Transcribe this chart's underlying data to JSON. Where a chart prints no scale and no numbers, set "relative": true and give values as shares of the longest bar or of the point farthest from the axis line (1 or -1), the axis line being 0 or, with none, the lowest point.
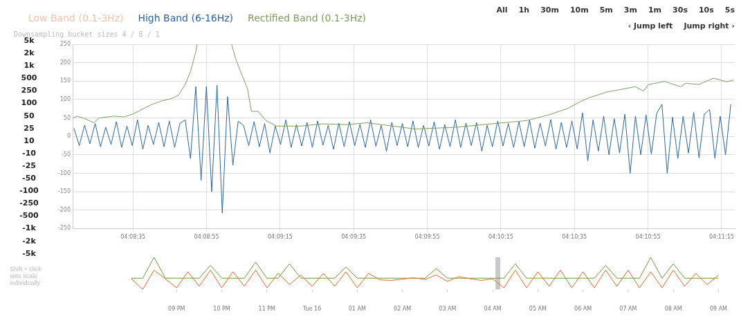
{
  "chart_data": [
    {
      "type": "line",
      "subtitle": "Downsampling bucket sizes 4 / 8 / 1",
      "legend": "top left",
      "grid": true,
      "marker": "none",
      "xlim": [
        4.1385,
        4.1885
      ],
      "xticks": [
        {
          "value": 4.143056,
          "label": "04:08:35"
        },
        {
          "value": 4.148611,
          "label": "04:08:55"
        },
        {
          "value": 4.154167,
          "label": "04:09:15"
        },
        {
          "value": 4.159722,
          "label": "04:09:35"
        },
        {
          "value": 4.165278,
          "label": "04:09:55"
        },
        {
          "value": 4.170833,
          "label": "04:10:15"
        },
        {
          "value": 4.176389,
          "label": "04:10:35"
        },
        {
          "value": 4.181944,
          "label": "04:10:55"
        },
        {
          "value": 4.1875,
          "label": "04:11:15"
        }
      ],
      "ylim": [
        -250,
        250
      ],
      "yticks": [
        -250,
        -200,
        -150,
        -100,
        -50,
        0,
        50,
        100,
        150,
        200,
        250
      ],
      "series": [
        {
          "name": "Low Band (0.1-3Hz)",
          "color": "#f0c2a8"
        },
        {
          "name": "High Band (6-16Hz)",
          "color": "#2a64a0",
          "x": [
            4.1386,
            4.139,
            4.1394,
            4.1398,
            4.1402,
            4.1406,
            4.141,
            4.1414,
            4.1418,
            4.1422,
            4.1426,
            4.143,
            4.1434,
            4.1438,
            4.1442,
            4.1446,
            4.145,
            4.1454,
            4.1458,
            4.1462,
            4.1466,
            4.147,
            4.1474,
            4.1478,
            4.1482,
            4.1486,
            4.149,
            4.1494,
            4.1498,
            4.1502,
            4.1506,
            4.151,
            4.1514,
            4.1518,
            4.1522,
            4.1526,
            4.153,
            4.1534,
            4.1538,
            4.1542,
            4.1546,
            4.155,
            4.1554,
            4.1558,
            4.1562,
            4.1566,
            4.157,
            4.1574,
            4.1578,
            4.1582,
            4.1586,
            4.159,
            4.1594,
            4.1598,
            4.1602,
            4.1606,
            4.161,
            4.1614,
            4.1618,
            4.1622,
            4.1626,
            4.163,
            4.1634,
            4.1638,
            4.1642,
            4.1646,
            4.165,
            4.1654,
            4.1658,
            4.1662,
            4.1666,
            4.167,
            4.1674,
            4.1678,
            4.1682,
            4.1686,
            4.169,
            4.1694,
            4.1698,
            4.1702,
            4.1706,
            4.171,
            4.1714,
            4.1718,
            4.1722,
            4.1726,
            4.173,
            4.1734,
            4.1738,
            4.1742,
            4.1746,
            4.175,
            4.1754,
            4.1758,
            4.1762,
            4.1766,
            4.177,
            4.1774,
            4.1778,
            4.1782,
            4.1786,
            4.179,
            4.1794,
            4.1798,
            4.1802,
            4.1806,
            4.181,
            4.1814,
            4.1818,
            4.1822,
            4.1826,
            4.183,
            4.1834,
            4.1838,
            4.1842,
            4.1846,
            4.185,
            4.1854,
            4.1858,
            4.1862,
            4.1866,
            4.187,
            4.1874,
            4.1878,
            4.1882
          ],
          "values": [
            22,
            -25,
            30,
            -20,
            35,
            -28,
            25,
            -22,
            40,
            -30,
            28,
            -25,
            45,
            -35,
            30,
            -22,
            38,
            -28,
            42,
            -30,
            35,
            45,
            -60,
            135,
            -119,
            135,
            -150,
            139,
            -208,
            108,
            -78,
            41,
            30,
            -25,
            40,
            -28,
            35,
            -45,
            28,
            -22,
            45,
            -30,
            32,
            -26,
            38,
            -30,
            42,
            -24,
            30,
            -35,
            36,
            -28,
            40,
            -25,
            33,
            -30,
            45,
            -27,
            30,
            -40,
            38,
            -25,
            35,
            -28,
            42,
            -30,
            30,
            -26,
            40,
            -35,
            32,
            -28,
            45,
            -30,
            36,
            -25,
            38,
            -40,
            30,
            -28,
            42,
            -26,
            35,
            -30,
            40,
            -28,
            44,
            -32,
            36,
            -26,
            46,
            -35,
            38,
            -30,
            42,
            -34,
            64,
            -66,
            45,
            -40,
            55,
            -50,
            48,
            -45,
            60,
            -100,
            55,
            -50,
            58,
            -48,
            62,
            87,
            -100,
            52,
            -60,
            55,
            -45,
            65,
            -58,
            60,
            73,
            -60,
            55,
            -50,
            87
          ]
        },
        {
          "name": "Rectified Band (0.1-3Hz)",
          "color": "#7a9e5e",
          "x": [
            4.1385,
            4.1388,
            4.1393,
            4.1401,
            4.1405,
            4.1416,
            4.1424,
            4.143,
            4.1439,
            4.1445,
            4.1452,
            4.146,
            4.1465,
            4.147,
            4.1474,
            4.1478,
            4.1479,
            4.1492,
            4.1505,
            4.1508,
            4.1512,
            4.1517,
            4.152,
            4.1525,
            4.1531,
            4.1539,
            4.1557,
            4.1574,
            4.1592,
            4.1607,
            4.1627,
            4.1644,
            4.1675,
            4.1701,
            4.1728,
            4.1745,
            4.1759,
            4.1768,
            4.1775,
            4.1789,
            4.1797,
            4.181,
            4.1816,
            4.182,
            4.1832,
            4.1839,
            4.1844,
            4.1848,
            4.1858,
            4.1869,
            4.1874,
            4.1879,
            4.1884
          ],
          "values": [
            49,
            55,
            50,
            37,
            50,
            55,
            53,
            60,
            76,
            87,
            96,
            103,
            112,
            141,
            176,
            230,
            250,
            null,
            250,
            212,
            174,
            130,
            68,
            68,
            43,
            28,
            28,
            34,
            32,
            37,
            28,
            20,
            25,
            34,
            43,
            59,
            76,
            94,
            105,
            121,
            126,
            135,
            123,
            141,
            149,
            141,
            135,
            144,
            141,
            158,
            153,
            148,
            153
          ]
        }
      ]
    },
    {
      "type": "line",
      "relative": true,
      "marker": "none",
      "categories": [
        null,
        null,
        null,
        null,
        "09 PM",
        null,
        null,
        null,
        "10 PM",
        null,
        null,
        null,
        "11 PM",
        null,
        null,
        null,
        "Tue 16",
        null,
        null,
        null,
        "01 AM",
        null,
        null,
        null,
        "02 AM",
        null,
        null,
        null,
        "03 AM",
        null,
        null,
        null,
        "04 AM",
        null,
        null,
        null,
        "05 AM",
        null,
        null,
        null,
        "06 AM",
        null,
        null,
        null,
        "07 AM",
        null,
        null,
        null,
        "08 AM",
        null,
        null,
        null,
        "09 AM"
      ],
      "bands": [
        {
          "axis": "x",
          "from": "04 AM",
          "to": "04 AM",
          "color": "#c8c8c8"
        }
      ],
      "annotations": [
        "Shift + click sets scale individually"
      ],
      "series": [
        {
          "color": "#6a9a3a",
          "values": [
            0.35,
            0.35,
            1,
            0.35,
            0.35,
            0.35,
            0.35,
            0.75,
            0.35,
            0.35,
            0.35,
            0.85,
            0.35,
            0.35,
            0.8,
            0.35,
            0.35,
            0.35,
            0.35,
            0.7,
            0.35,
            0.35,
            0.35,
            0.35,
            0.35,
            0.35,
            0.35,
            0.65,
            0.35,
            0.35,
            0.35,
            0.35,
            0.35,
            0.35,
            0.8,
            0.35,
            0.35,
            0.35,
            0.35,
            0.35,
            0.35,
            0.35,
            0.75,
            0.35,
            0.35,
            0.35,
            1,
            0.35,
            0.8,
            0.35,
            0.35,
            0.35,
            0.35
          ]
        },
        {
          "color": "#f26522",
          "values": [
            0.33,
            0,
            0.6,
            0.33,
            0.05,
            0.55,
            0.1,
            0.6,
            0.05,
            0.55,
            0.1,
            0.6,
            0.05,
            0.5,
            0.15,
            0.45,
            0.1,
            0.5,
            0.1,
            0.55,
            0.05,
            0.5,
            0.3,
            0.28,
            0.32,
            0.36,
            0.31,
            0.45,
            0.25,
            0.4,
            0.33,
            0.28,
            0.33,
            0.05,
            0.6,
            0.05,
            0.55,
            0.1,
            0.6,
            0.05,
            0.55,
            0.05,
            0.6,
            0.1,
            0.6,
            0.05,
            0.55,
            0.05,
            0.6,
            0.1,
            0.5,
            0.15,
            0.45
          ]
        }
      ]
    },
    {
      "type": "other",
      "annotations": [
        "All",
        "1h",
        "30m",
        "10m",
        "5m",
        "3m",
        "1m",
        "30s",
        "10s",
        "5s"
      ]
    },
    {
      "type": "other",
      "annotations": [
        "‹ Jump left",
        "Jump right ›"
      ]
    },
    {
      "type": "other",
      "annotations": [
        "5k",
        "2k",
        "1k",
        "500",
        "250",
        "100",
        "50",
        "25",
        "10",
        "-10",
        "-25",
        "-50",
        "-100",
        "-250",
        "-500",
        "-1k",
        "-2k",
        "-5k"
      ]
    }
  ]
}
